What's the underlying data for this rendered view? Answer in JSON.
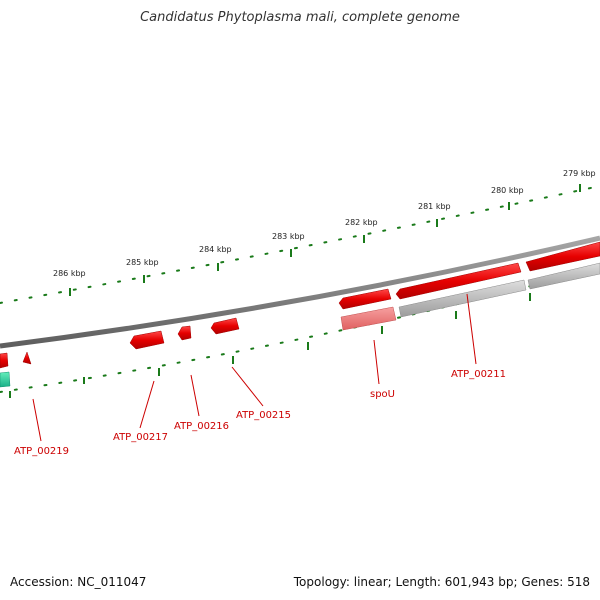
{
  "title": "Candidatus Phytoplasma mali, complete genome",
  "footer": {
    "accession": "Accession: NC_011047",
    "summary": "Topology: linear; Length: 601,943 bp; Genes: 518"
  },
  "scale_labels": [
    "279 kbp",
    "280 kbp",
    "281 kbp",
    "282 kbp",
    "283 kbp",
    "284 kbp",
    "285 kbp",
    "286 kbp"
  ],
  "gene_labels": [
    "spoU",
    "ATP_00211",
    "ATP_00215",
    "ATP_00216",
    "ATP_00217",
    "ATP_00219"
  ],
  "colors": {
    "gene": "#e60000",
    "gene_light": "#ee7777",
    "pseudo": "#b4b4b4",
    "backbone": "#808080",
    "tick": "#1a7a1a",
    "rna": "#33cc99"
  }
}
